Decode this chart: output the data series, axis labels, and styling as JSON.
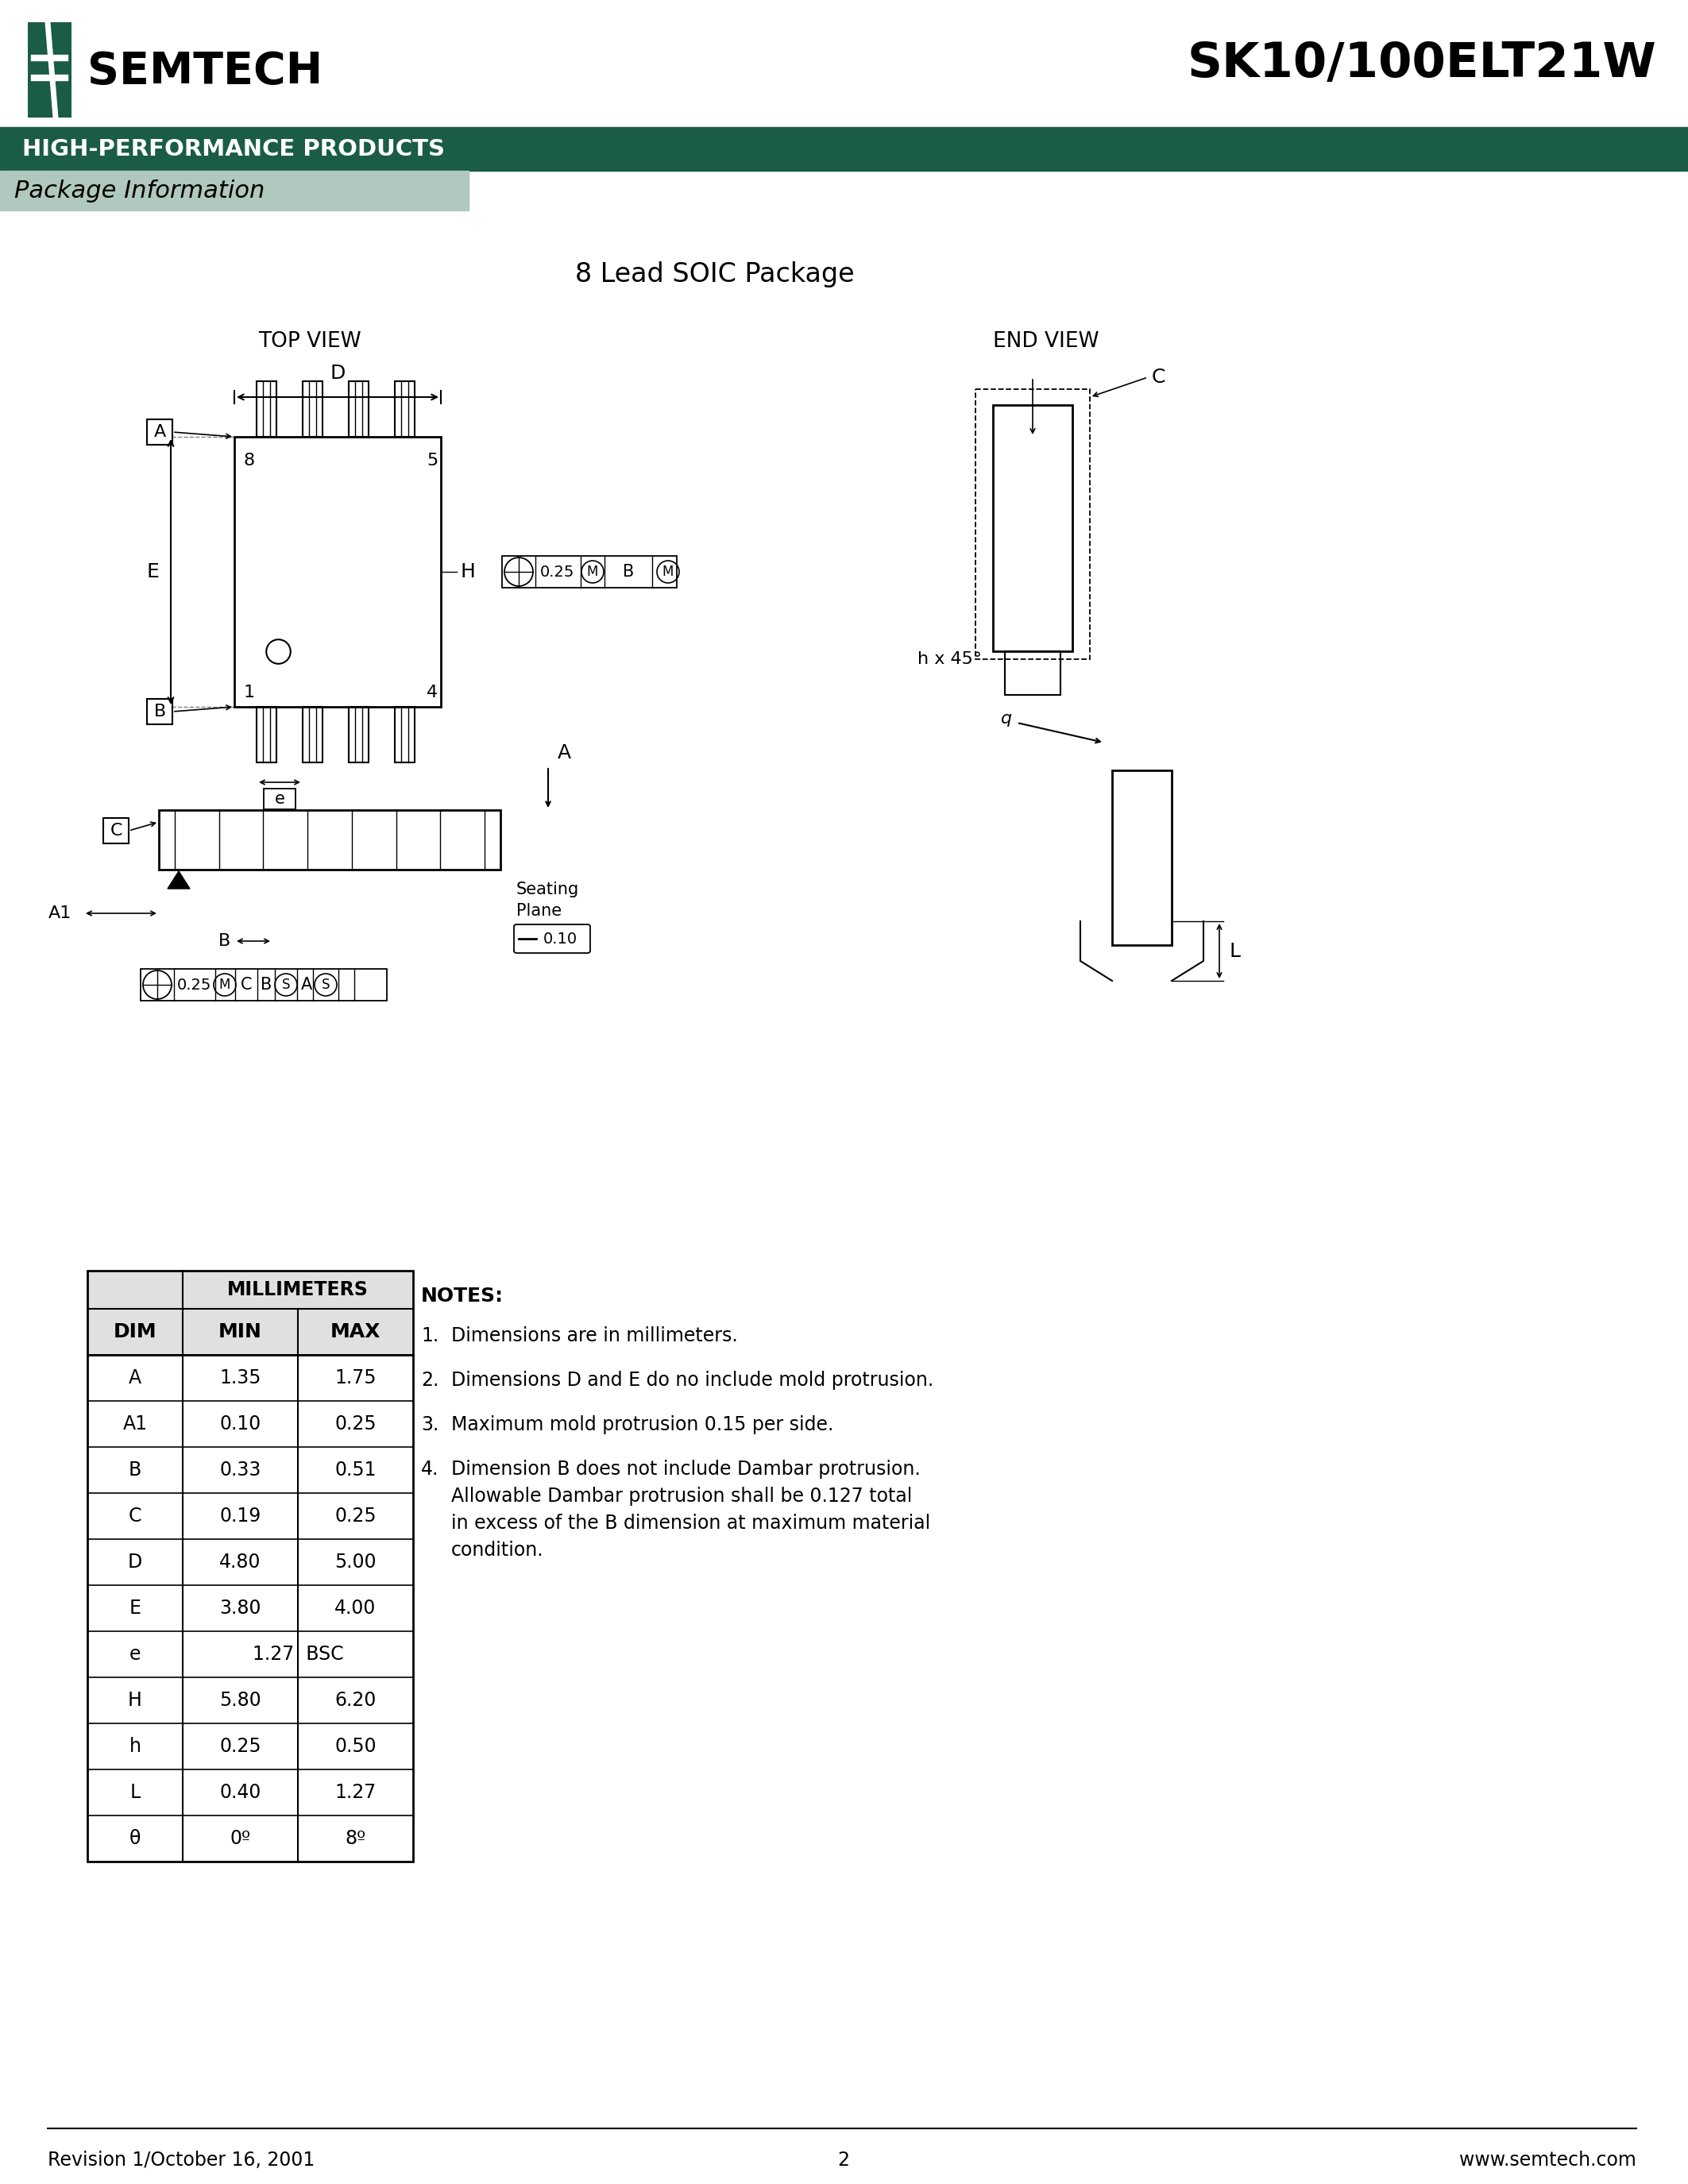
{
  "title": "SK10/100ELT21W",
  "company": "SEMTECH",
  "banner_text": "HIGH-PERFORMANCE PRODUCTS",
  "section_text": "Package Information",
  "page_title": "8 Lead SOIC Package",
  "bg_color": "#ffffff",
  "banner_color": "#1a5c45",
  "section_bg": "#b0c8be",
  "table_header_bg": "#e0e0e0",
  "table_data": [
    [
      "A",
      "1.35",
      "1.75"
    ],
    [
      "A1",
      "0.10",
      "0.25"
    ],
    [
      "B",
      "0.33",
      "0.51"
    ],
    [
      "C",
      "0.19",
      "0.25"
    ],
    [
      "D",
      "4.80",
      "5.00"
    ],
    [
      "E",
      "3.80",
      "4.00"
    ],
    [
      "e",
      "1.27",
      "BSC"
    ],
    [
      "H",
      "5.80",
      "6.20"
    ],
    [
      "h",
      "0.25",
      "0.50"
    ],
    [
      "L",
      "0.40",
      "1.27"
    ],
    [
      "θ",
      "0º",
      "8º"
    ]
  ],
  "notes": [
    "Dimensions are in millimeters.",
    "Dimensions D and E do no include mold protrusion.",
    "Maximum mold protrusion 0.15 per side.",
    "Dimension B does not include Dambar protrusion.\nAllowable Dambar protrusion shall be 0.127 total\nin excess of the B dimension at maximum material\ncondition."
  ],
  "footer_left": "Revision 1/October 16, 2001",
  "footer_center": "2",
  "footer_right": "www.semtech.com"
}
